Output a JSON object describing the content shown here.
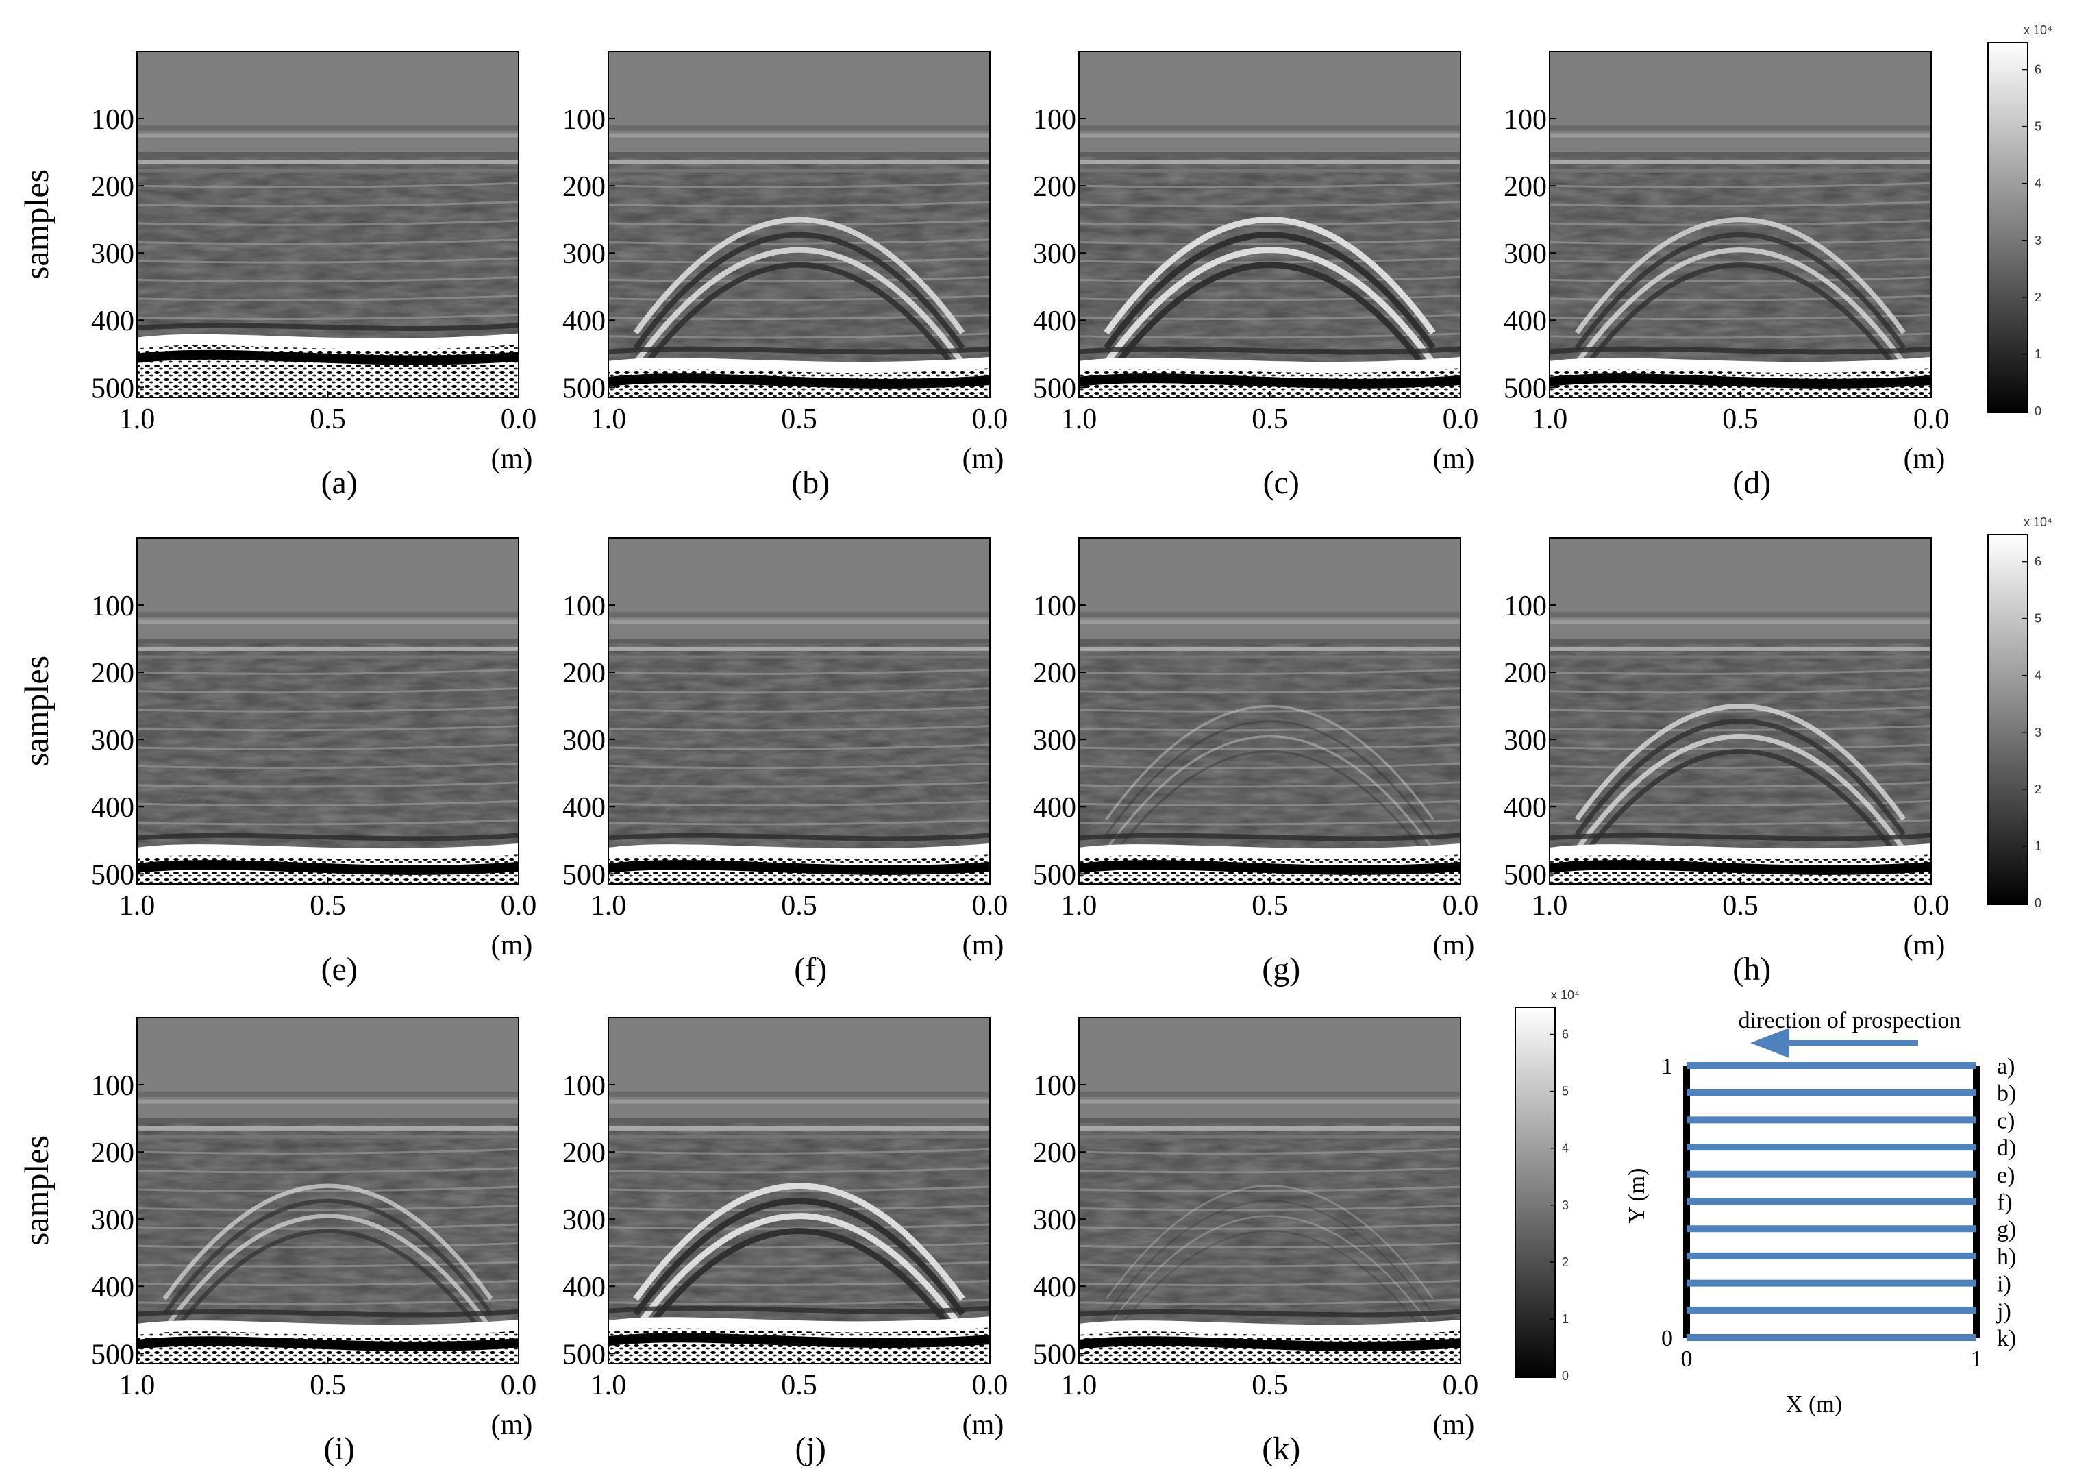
{
  "figure": {
    "ylabel": "samples",
    "x_unit": "(m)",
    "x_ticks": [
      "1.0",
      "0.5",
      "0.0"
    ],
    "y_ticks": [
      "100",
      "200",
      "300",
      "400",
      "500"
    ],
    "panels": [
      {
        "label": "(a)",
        "hyperbola": 0.0,
        "reflector": 430
      },
      {
        "label": "(b)",
        "hyperbola": 0.9,
        "reflector": 465
      },
      {
        "label": "(c)",
        "hyperbola": 1.0,
        "reflector": 465
      },
      {
        "label": "(d)",
        "hyperbola": 0.8,
        "reflector": 465
      },
      {
        "label": "(e)",
        "hyperbola": 0.1,
        "reflector": 465
      },
      {
        "label": "(f)",
        "hyperbola": 0.1,
        "reflector": 465
      },
      {
        "label": "(g)",
        "hyperbola": 0.4,
        "reflector": 465
      },
      {
        "label": "(h)",
        "hyperbola": 0.8,
        "reflector": 465
      },
      {
        "label": "(i)",
        "hyperbola": 0.7,
        "reflector": 460
      },
      {
        "label": "(j)",
        "hyperbola": 1.0,
        "reflector": 455
      },
      {
        "label": "(k)",
        "hyperbola": 0.3,
        "reflector": 460
      }
    ],
    "colorbar": {
      "multiplier": "x 10⁴",
      "ticks": [
        "0",
        "1",
        "2",
        "3",
        "4",
        "5",
        "6"
      ]
    },
    "map": {
      "title": "direction of prospection",
      "xlabel": "X (m)",
      "ylabel": "Y (m)",
      "x_ticks": [
        "0",
        "1"
      ],
      "y_ticks": [
        "0",
        "1"
      ],
      "profiles": [
        "a)",
        "b)",
        "c)",
        "d)",
        "e)",
        "f)",
        "g)",
        "h)",
        "i)",
        "j)",
        "k)"
      ],
      "line_color": "#4f81bd"
    }
  }
}
